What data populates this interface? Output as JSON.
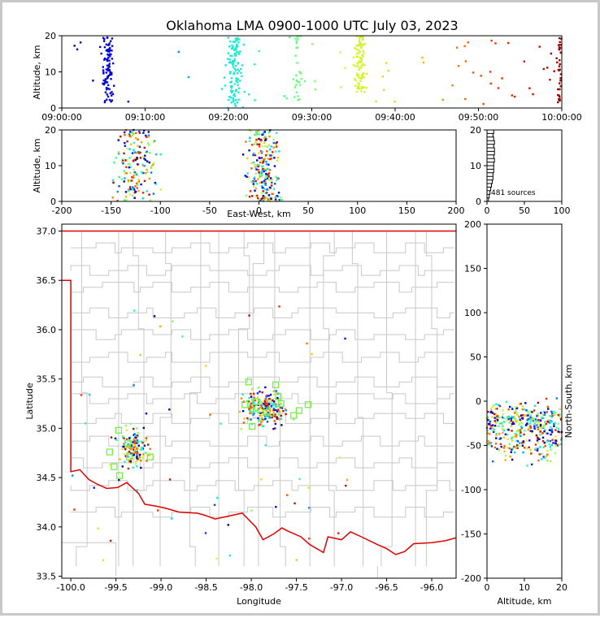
{
  "title": "Oklahoma LMA 0900-1000 UTC July 03, 2023",
  "colors": {
    "state_border": "#e00000",
    "county_lines": "#c8c8c8",
    "station_marker": "#77ee44",
    "frame_border": "#c8c8c8"
  },
  "chart_data": [
    {
      "id": "time_height",
      "type": "scatter",
      "xlabel": "",
      "ylabel": "Altitude, km",
      "xlim": [
        "09:00:00",
        "10:00:00"
      ],
      "ylim": [
        0,
        20
      ],
      "xticks": [
        "09:00:00",
        "09:10:00",
        "09:20:00",
        "09:30:00",
        "09:40:00",
        "09:50:00",
        "10:00:00"
      ],
      "yticks": [
        "0",
        "10",
        "20"
      ],
      "color_by_time": true,
      "color_scale": [
        "#000088",
        "#0000ff",
        "#00ddff",
        "#33ff99",
        "#ccff33",
        "#ffbb00",
        "#ff3300",
        "#990000"
      ],
      "bursts": [
        {
          "t_min": 5.5,
          "spread_min": 1.2,
          "count": 90,
          "alt_range": [
            0,
            20
          ]
        },
        {
          "t_min": 20.8,
          "spread_min": 1.5,
          "count": 110,
          "alt_range": [
            0,
            20
          ]
        },
        {
          "t_min": 28.3,
          "spread_min": 0.8,
          "count": 28,
          "alt_range": [
            2,
            20
          ]
        },
        {
          "t_min": 35.8,
          "spread_min": 1.2,
          "count": 85,
          "alt_range": [
            4,
            20
          ]
        },
        {
          "t_min": 59.7,
          "spread_min": 0.5,
          "count": 35,
          "alt_range": [
            1,
            20
          ]
        }
      ],
      "background_count": 70
    },
    {
      "id": "ew_height",
      "type": "scatter",
      "xlabel": "East-West, km",
      "ylabel": "Altitude, km",
      "xlim": [
        -200,
        200
      ],
      "ylim": [
        0,
        20
      ],
      "xticks": [
        "-200",
        "-150",
        "-100",
        "-50",
        "0",
        "50",
        "100",
        "150",
        "200"
      ],
      "yticks": [
        "0",
        "10",
        "20"
      ],
      "clusters": [
        {
          "x": -125,
          "spread": 28,
          "count": 170
        },
        {
          "x": 5,
          "spread": 22,
          "count": 230
        }
      ]
    },
    {
      "id": "height_histogram",
      "type": "bar",
      "xlim": [
        0,
        100
      ],
      "ylim": [
        0,
        20
      ],
      "xticks": [
        "0",
        "50",
        "100"
      ],
      "yticks": [
        "0",
        "10",
        "20"
      ],
      "annotation": "481 sources",
      "bin_km": 1,
      "values": [
        2,
        3,
        4,
        5,
        6,
        7,
        8,
        8,
        9,
        9,
        9,
        10,
        9,
        10,
        10,
        9,
        10,
        9,
        8,
        9
      ]
    },
    {
      "id": "plan_view",
      "type": "scatter",
      "xlabel": "Longitude",
      "ylabel": "Latitude",
      "xlim": [
        -100.1,
        -95.73
      ],
      "ylim": [
        33.48,
        37.07
      ],
      "xticks": [
        "-100.0",
        "-99.5",
        "-99.0",
        "-98.5",
        "-98.0",
        "-97.5",
        "-97.0",
        "-96.5",
        "-96.0"
      ],
      "yticks": [
        "33.5",
        "34.0",
        "34.5",
        "35.0",
        "35.5",
        "36.0",
        "36.5",
        "37.0"
      ],
      "clusters": [
        {
          "lon": -99.3,
          "lat": 34.8,
          "spread_lon": 0.2,
          "spread_lat": 0.25,
          "count": 150
        },
        {
          "lon": -97.85,
          "lat": 35.2,
          "spread_lon": 0.3,
          "spread_lat": 0.25,
          "count": 220
        }
      ],
      "background_count": 60,
      "stations": [
        {
          "lon": -99.57,
          "lat": 34.76
        },
        {
          "lon": -99.47,
          "lat": 34.98
        },
        {
          "lon": -99.37,
          "lat": 34.85
        },
        {
          "lon": -99.52,
          "lat": 34.61
        },
        {
          "lon": -99.46,
          "lat": 34.52
        },
        {
          "lon": -99.35,
          "lat": 34.71
        },
        {
          "lon": -99.12,
          "lat": 34.71
        },
        {
          "lon": -98.07,
          "lat": 35.24
        },
        {
          "lon": -98.03,
          "lat": 35.47
        },
        {
          "lon": -97.73,
          "lat": 35.44
        },
        {
          "lon": -97.99,
          "lat": 35.02
        },
        {
          "lon": -97.95,
          "lat": 35.27
        },
        {
          "lon": -97.67,
          "lat": 35.25
        },
        {
          "lon": -97.53,
          "lat": 35.13
        },
        {
          "lon": -97.47,
          "lat": 35.18
        },
        {
          "lon": -97.37,
          "lat": 35.24
        },
        {
          "lon": -97.83,
          "lat": 35.16
        },
        {
          "lon": -97.7,
          "lat": 35.32
        }
      ]
    },
    {
      "id": "ns_height",
      "type": "scatter",
      "xlabel": "Altitude, km",
      "ylabel": "North-South, km",
      "xlim": [
        0,
        20
      ],
      "ylim": [
        -200,
        200
      ],
      "xticks": [
        "0",
        "10",
        "20"
      ],
      "yticks": [
        "-200",
        "-150",
        "-100",
        "-50",
        "0",
        "50",
        "100",
        "150",
        "200"
      ],
      "clusters": [
        {
          "y": -20,
          "spread": 25,
          "count": 230
        },
        {
          "y": -45,
          "spread": 30,
          "count": 170
        }
      ]
    }
  ]
}
